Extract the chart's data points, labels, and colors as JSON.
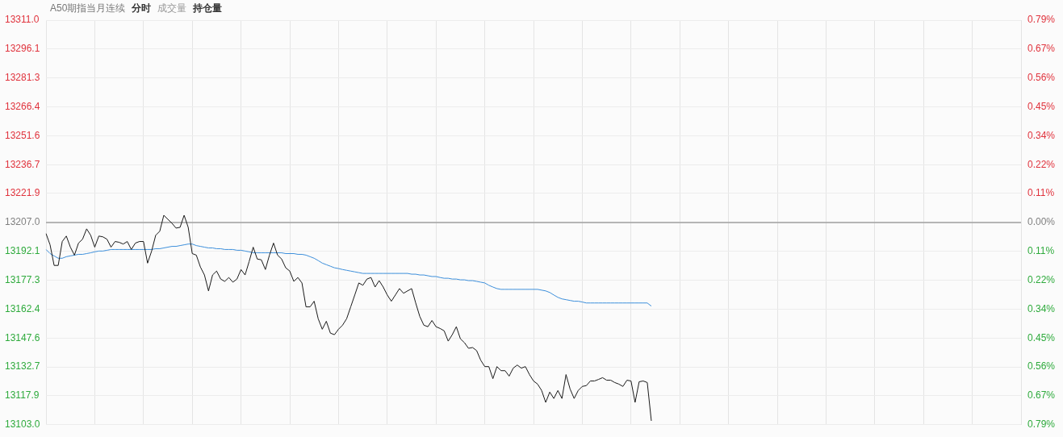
{
  "chart_data": {
    "type": "line",
    "title": "A50期指当月连续",
    "annotations": [
      "分时",
      "成交量",
      "持仓量"
    ],
    "categories": [
      null,
      null,
      null,
      null,
      null,
      null,
      null,
      null,
      null,
      null,
      null,
      null,
      null,
      null,
      null,
      null,
      null,
      null,
      null,
      null,
      null,
      null,
      null,
      null,
      null,
      null,
      null,
      null,
      null,
      null,
      null,
      null,
      null,
      null,
      null,
      null,
      null,
      null,
      null,
      null,
      null,
      null,
      null,
      null,
      null,
      null,
      null,
      null,
      null,
      null,
      null,
      null,
      null,
      null,
      null,
      null,
      null,
      null,
      null,
      null,
      null,
      null,
      null,
      null,
      null,
      null,
      null,
      null,
      null,
      null,
      null,
      null,
      null,
      null,
      null,
      null,
      null,
      null,
      null,
      null,
      null,
      null,
      null,
      null,
      null,
      null,
      null,
      null,
      null,
      null,
      null,
      null,
      null,
      null,
      null,
      null,
      null,
      null,
      null,
      null,
      null,
      null,
      null,
      null,
      null,
      null,
      null,
      null,
      null,
      null,
      null,
      null,
      null,
      null,
      null,
      null,
      null,
      null,
      null,
      null,
      null,
      null,
      null,
      null,
      null,
      null,
      null,
      null,
      null,
      null,
      null,
      null,
      null,
      null,
      null,
      null,
      null,
      null,
      null,
      null,
      null,
      null,
      null,
      null,
      null,
      null,
      null,
      null,
      null,
      null,
      null,
      null,
      null,
      null,
      null,
      null,
      null,
      null,
      null,
      null,
      null,
      null,
      null,
      null,
      null,
      null,
      null,
      null,
      null,
      null,
      null,
      null,
      null,
      null,
      null,
      null,
      null,
      null,
      null,
      null,
      null,
      null,
      null,
      null,
      null,
      null,
      null,
      null,
      null,
      null,
      null,
      null,
      null,
      null,
      null,
      null,
      null,
      null,
      null,
      null,
      null,
      null,
      null,
      null,
      null,
      null,
      null,
      null,
      null,
      null,
      null,
      null,
      null,
      null,
      null,
      null,
      null,
      null,
      null,
      null,
      null,
      null,
      null,
      null,
      null,
      null,
      null,
      null,
      null,
      null,
      null,
      null,
      null,
      null,
      null,
      null,
      null,
      null,
      null,
      null,
      null
    ],
    "series": [
      {
        "color": "#1a1a1a",
        "values": [
          13201.3,
          13195.5,
          13184.9,
          13184.9,
          13197.2,
          13200.0,
          13194.3,
          13190.2,
          13196.4,
          13198.4,
          13203.7,
          13200.4,
          13194.3,
          13200.0,
          13199.6,
          13198.4,
          13194.3,
          13197.2,
          13196.8,
          13195.9,
          13197.2,
          13193.1,
          13196.4,
          13197.2,
          13197.2,
          13186.1,
          13192.3,
          13200.4,
          13202.5,
          13210.7,
          13208.6,
          13206.6,
          13204.1,
          13204.5,
          13210.7,
          13204.5,
          13191.0,
          13190.2,
          13184.1,
          13180.0,
          13171.8,
          13180.0,
          13182.0,
          13177.9,
          13176.7,
          13178.7,
          13176.3,
          13177.9,
          13182.8,
          13180.0,
          13186.9,
          13194.3,
          13188.2,
          13187.8,
          13182.8,
          13190.2,
          13196.4,
          13190.2,
          13188.2,
          13183.7,
          13182.0,
          13176.7,
          13178.7,
          13175.9,
          13163.6,
          13163.6,
          13166.5,
          13157.5,
          13152.1,
          13156.2,
          13150.1,
          13149.3,
          13152.1,
          13154.2,
          13157.5,
          13163.6,
          13169.7,
          13175.9,
          13174.7,
          13177.9,
          13178.7,
          13173.8,
          13177.1,
          13173.8,
          13169.7,
          13166.5,
          13169.7,
          13173.0,
          13170.6,
          13171.8,
          13173.0,
          13165.6,
          13158.7,
          13154.2,
          13153.4,
          13156.6,
          13153.4,
          13152.5,
          13151.3,
          13146.0,
          13149.3,
          13153.4,
          13147.2,
          13145.2,
          13142.3,
          13142.7,
          13141.1,
          13136.2,
          13132.9,
          13132.9,
          13126.7,
          13132.9,
          13130.8,
          13130.8,
          13128.0,
          13132.1,
          13133.7,
          13132.1,
          13132.9,
          13128.8,
          13125.5,
          13123.9,
          13120.6,
          13114.5,
          13119.8,
          13116.5,
          13120.6,
          13116.5,
          13128.8,
          13121.4,
          13116.5,
          13120.6,
          13122.7,
          13123.1,
          13125.5,
          13125.5,
          13126.3,
          13127.2,
          13125.9,
          13125.9,
          13124.7,
          13123.9,
          13122.7,
          13125.9,
          13125.5,
          13114.5,
          13125.1,
          13125.5,
          13124.7,
          13105.0,
          null,
          null,
          null,
          null,
          null,
          null,
          null,
          null,
          null,
          null,
          null,
          null,
          null,
          null,
          null,
          null,
          null,
          null,
          null,
          null,
          null,
          null,
          null,
          null,
          null,
          null,
          null,
          null,
          null,
          null,
          null,
          null,
          null,
          null,
          null,
          null,
          null,
          null,
          null,
          null,
          null,
          null,
          null,
          null,
          null,
          null,
          null,
          null,
          null,
          null,
          null,
          null,
          null,
          null,
          null,
          null,
          null,
          null,
          null,
          null,
          null,
          null,
          null,
          null,
          null,
          null,
          null,
          null,
          null,
          null,
          null,
          null,
          null,
          null,
          null,
          null,
          null,
          null,
          null,
          null,
          null,
          null,
          null,
          null,
          null,
          null,
          null,
          null,
          null,
          null,
          null
        ]
      },
      {
        "color": "#3d8fdb",
        "values": [
          13193.1,
          13191.0,
          13189.8,
          13188.6,
          13188.6,
          13189.4,
          13189.8,
          13190.2,
          13190.6,
          13190.6,
          13191.0,
          13191.4,
          13191.9,
          13192.3,
          13192.3,
          13192.7,
          13193.1,
          13193.1,
          13193.1,
          13193.1,
          13193.1,
          13193.1,
          13193.1,
          13193.1,
          13193.1,
          13193.1,
          13193.1,
          13193.5,
          13193.5,
          13193.9,
          13194.3,
          13194.7,
          13194.7,
          13195.1,
          13195.5,
          13195.9,
          13195.9,
          13195.1,
          13194.7,
          13194.3,
          13193.9,
          13193.9,
          13193.5,
          13193.5,
          13193.1,
          13193.1,
          13193.1,
          13192.7,
          13192.7,
          13192.3,
          13191.9,
          13191.4,
          13191.4,
          13191.4,
          13191.4,
          13191.4,
          13191.4,
          13191.4,
          13191.4,
          13191.0,
          13191.0,
          13191.0,
          13190.6,
          13190.6,
          13190.2,
          13189.4,
          13188.6,
          13187.4,
          13186.1,
          13185.3,
          13184.5,
          13183.7,
          13183.3,
          13182.8,
          13182.4,
          13182.0,
          13181.6,
          13181.2,
          13180.8,
          13180.8,
          13180.8,
          13180.8,
          13180.8,
          13180.8,
          13180.8,
          13180.8,
          13180.8,
          13180.8,
          13180.8,
          13180.8,
          13180.4,
          13180.4,
          13180.0,
          13180.0,
          13179.6,
          13179.2,
          13179.2,
          13178.7,
          13178.3,
          13178.3,
          13177.9,
          13177.9,
          13177.5,
          13177.5,
          13177.1,
          13177.1,
          13176.7,
          13176.3,
          13175.9,
          13174.7,
          13173.8,
          13173.0,
          13172.6,
          13172.6,
          13172.6,
          13172.6,
          13172.6,
          13172.6,
          13172.6,
          13172.6,
          13172.6,
          13172.6,
          13172.2,
          13171.8,
          13171.0,
          13169.7,
          13168.5,
          13167.7,
          13167.3,
          13166.9,
          13166.5,
          13166.5,
          13166.1,
          13165.6,
          13165.6,
          13165.6,
          13165.6,
          13165.6,
          13165.6,
          13165.6,
          13165.6,
          13165.6,
          13165.6,
          13165.6,
          13165.6,
          13165.6,
          13165.6,
          13165.6,
          13165.6,
          13164.0,
          null,
          null,
          null,
          null,
          null,
          null,
          null,
          null,
          null,
          null,
          null,
          null,
          null,
          null,
          null,
          null,
          null,
          null,
          null,
          null,
          null,
          null,
          null,
          null,
          null,
          null,
          null,
          null,
          null,
          null,
          null,
          null,
          null,
          null,
          null,
          null,
          null,
          null,
          null,
          null,
          null,
          null,
          null,
          null,
          null,
          null,
          null,
          null,
          null,
          null,
          null,
          null,
          null,
          null,
          null,
          null,
          null,
          null,
          null,
          null,
          null,
          null,
          null,
          null,
          null,
          null,
          null,
          null,
          null,
          null,
          null,
          null,
          null,
          null,
          null,
          null,
          null,
          null,
          null,
          null,
          null,
          null,
          null,
          null,
          null,
          null,
          null,
          null,
          null,
          null,
          null
        ]
      }
    ],
    "ylim": [
      13103.0,
      13311.0
    ],
    "yticks": [
      {
        "value": 13103.0,
        "label": "13103.0"
      },
      {
        "value": 13117.9,
        "label": "13117.9"
      },
      {
        "value": 13132.7,
        "label": "13132.7"
      },
      {
        "value": 13147.6,
        "label": "13147.6"
      },
      {
        "value": 13162.4,
        "label": "13162.4"
      },
      {
        "value": 13177.3,
        "label": "13177.3"
      },
      {
        "value": 13192.1,
        "label": "13192.1"
      },
      {
        "value": 13207.0,
        "label": "13207.0"
      },
      {
        "value": 13221.9,
        "label": "13221.9"
      },
      {
        "value": 13236.7,
        "label": "13236.7"
      },
      {
        "value": 13251.6,
        "label": "13251.6"
      },
      {
        "value": 13266.4,
        "label": "13266.4"
      },
      {
        "value": 13281.3,
        "label": "13281.3"
      },
      {
        "value": 13296.1,
        "label": "13296.1"
      },
      {
        "value": 13311.0,
        "label": "13311.0"
      }
    ],
    "y2lim": [
      -0.7875,
      0.7875
    ],
    "y2ticks": [
      {
        "value": -0.7875,
        "label": "0.79%"
      },
      {
        "value": -0.675,
        "label": "0.67%"
      },
      {
        "value": -0.5625,
        "label": "0.56%"
      },
      {
        "value": -0.45,
        "label": "0.45%"
      },
      {
        "value": -0.3375,
        "label": "0.34%"
      },
      {
        "value": -0.225,
        "label": "0.22%"
      },
      {
        "value": -0.1125,
        "label": "0.11%"
      },
      {
        "value": 0,
        "label": "0.00%"
      },
      {
        "value": 0.1125,
        "label": "0.11%"
      },
      {
        "value": 0.225,
        "label": "0.22%"
      },
      {
        "value": 0.3375,
        "label": "0.34%"
      },
      {
        "value": 0.45,
        "label": "0.45%"
      },
      {
        "value": 0.5625,
        "label": "0.56%"
      },
      {
        "value": 0.675,
        "label": "0.67%"
      },
      {
        "value": 0.7875,
        "label": "0.79%"
      }
    ],
    "ref_lines": [
      {
        "axis": "y",
        "value": 13207.0,
        "color": "#a0a0a0"
      }
    ],
    "grid": true,
    "tick_labels": "y",
    "marker": "none",
    "line_style": "solid",
    "legend": false
  }
}
